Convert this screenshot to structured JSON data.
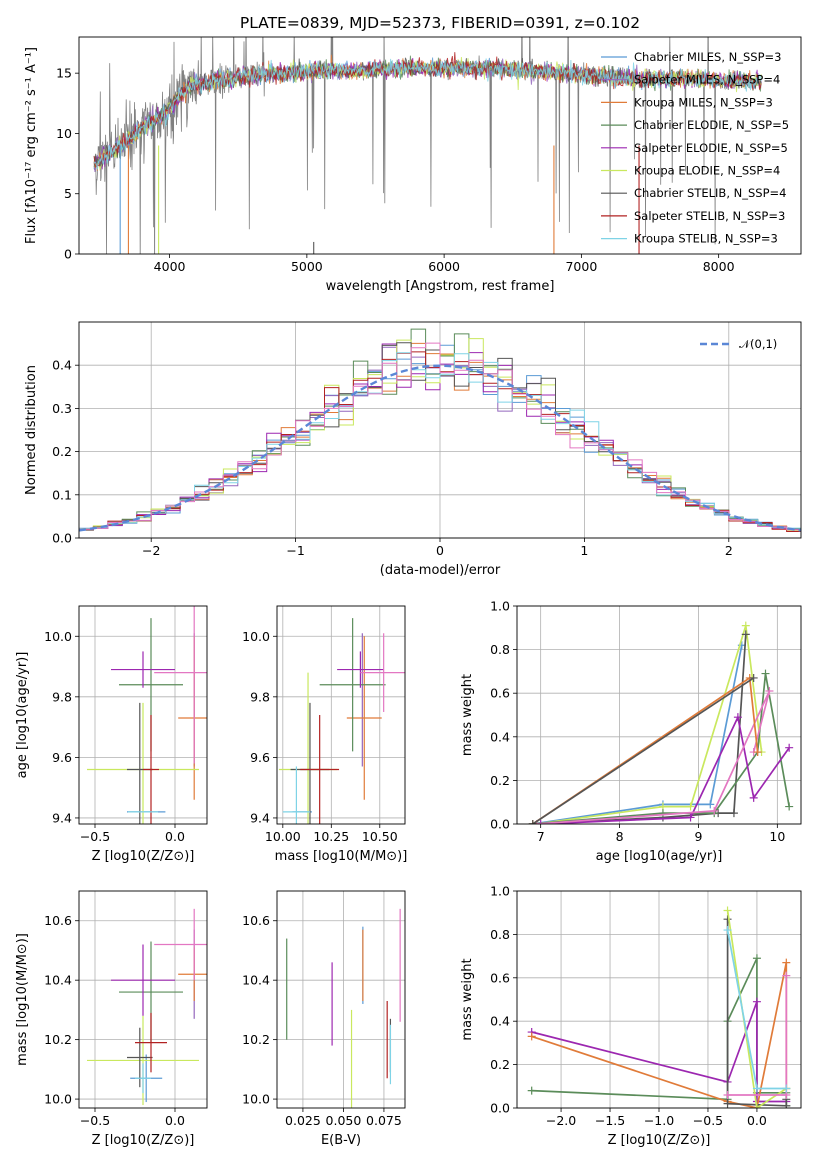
{
  "title": "PLATE=0839, MJD=52373, FIBERID=0391, z=0.102",
  "model_colors": [
    "#5b9bd5",
    "#9467bd",
    "#e07b39",
    "#5b8c5a",
    "#9c27b0",
    "#c9e85e",
    "#555555",
    "#b22222",
    "#7fd3e6"
  ],
  "chart_data": [
    {
      "id": "spectrum",
      "type": "line",
      "xlabel": "wavelength [Angstrom, rest frame]",
      "ylabel": "Flux [fλ10⁻¹⁷ erg cm⁻² s⁻¹ A⁻¹]",
      "xlim": [
        3340,
        8600
      ],
      "ylim": [
        0,
        18
      ],
      "xticks": [
        4000,
        5000,
        6000,
        7000,
        8000
      ],
      "yticks": [
        0,
        5,
        10,
        15
      ],
      "legend_position": "upper right",
      "series": [
        {
          "name": "Chabrier MILES, N_SSP=3",
          "color": "#5b9bd5"
        },
        {
          "name": "Salpeter MILES, N_SSP=4",
          "color": "#9467bd"
        },
        {
          "name": "Kroupa MILES, N_SSP=3",
          "color": "#e07b39"
        },
        {
          "name": "Chabrier ELODIE, N_SSP=5",
          "color": "#5b8c5a"
        },
        {
          "name": "Salpeter ELODIE, N_SSP=5",
          "color": "#9c27b0"
        },
        {
          "name": "Kroupa ELODIE, N_SSP=4",
          "color": "#c9e85e"
        },
        {
          "name": "Chabrier STELIB, N_SSP=4",
          "color": "#555555"
        },
        {
          "name": "Salpeter STELIB, N_SSP=3",
          "color": "#b22222"
        },
        {
          "name": "Kroupa STELIB, N_SSP=3",
          "color": "#7fd3e6"
        }
      ],
      "data_curve": {
        "x": [
          3450,
          3550,
          3650,
          3750,
          3850,
          3950,
          4050,
          4150,
          4300,
          4500,
          4700,
          4900,
          5100,
          5300,
          5500,
          5700,
          5900,
          6100,
          6300,
          6500,
          6700,
          6900,
          7100,
          7300,
          7500,
          7700,
          7900,
          8100,
          8300
        ],
        "y": [
          7.5,
          8.3,
          9.0,
          10.0,
          10.8,
          11.5,
          12.8,
          14.0,
          14.3,
          14.6,
          14.9,
          15.1,
          15.2,
          15.2,
          15.3,
          15.4,
          15.4,
          15.4,
          15.4,
          15.3,
          15.2,
          15.0,
          14.8,
          14.6,
          14.5,
          14.6,
          14.5,
          14.3,
          14.3
        ]
      }
    },
    {
      "id": "residuals",
      "type": "step",
      "xlabel": "(data-model)/error",
      "ylabel": "Normed distribution",
      "xlim": [
        -2.5,
        2.5
      ],
      "ylim": [
        0,
        0.5
      ],
      "xticks": [
        -2,
        -1,
        0,
        1,
        2
      ],
      "yticks": [
        0.0,
        0.1,
        0.2,
        0.3,
        0.4
      ],
      "legend": [
        {
          "name": "𝒩(0,1)",
          "style": "dashed",
          "color": "#5b87d6"
        }
      ],
      "gaussian": {
        "mean": 0,
        "sigma": 1
      }
    },
    {
      "id": "age-vs-Z",
      "type": "errorbar",
      "xlabel": "Z [log10(Z/Z⊙)]",
      "ylabel": "age [log10(age/yr)]",
      "xlim": [
        -0.6,
        0.2
      ],
      "ylim": [
        9.38,
        10.1
      ],
      "xticks": [
        -0.5,
        0.0
      ],
      "yticks": [
        9.4,
        9.6,
        9.8,
        10.0
      ],
      "points": [
        {
          "x": -0.18,
          "y": 9.42,
          "xerr": 0.12,
          "yerr": 0.0,
          "color": "#5b9bd5"
        },
        {
          "x": 0.12,
          "y": 9.79,
          "xerr": 0.0,
          "yerr": 0.22,
          "color": "#9467bd"
        },
        {
          "x": 0.12,
          "y": 9.73,
          "xerr": 0.1,
          "yerr": 0.27,
          "color": "#e07b39"
        },
        {
          "x": -0.15,
          "y": 9.84,
          "xerr": 0.2,
          "yerr": 0.22,
          "color": "#5b8c5a"
        },
        {
          "x": -0.2,
          "y": 9.89,
          "xerr": 0.2,
          "yerr": 0.06,
          "color": "#9c27b0"
        },
        {
          "x": -0.2,
          "y": 9.56,
          "xerr": 0.35,
          "yerr": 0.22,
          "color": "#c9e85e"
        },
        {
          "x": -0.22,
          "y": 9.56,
          "xerr": 0.08,
          "yerr": 0.22,
          "color": "#555555"
        },
        {
          "x": -0.15,
          "y": 9.56,
          "xerr": 0.05,
          "yerr": 0.18,
          "color": "#b22222"
        },
        {
          "x": -0.2,
          "y": 9.42,
          "xerr": 0.0,
          "yerr": 0.0,
          "color": "#7fd3e6"
        },
        {
          "x": 0.12,
          "y": 9.88,
          "xerr": 0.25,
          "yerr": 0.3,
          "color": "#e377c2"
        }
      ]
    },
    {
      "id": "age-vs-mass",
      "type": "errorbar",
      "xlabel": "mass [log10(M/M⊙)]",
      "ylabel": "",
      "xlim": [
        9.97,
        10.63
      ],
      "ylim": [
        9.38,
        10.1
      ],
      "xticks": [
        10.0,
        10.25,
        10.5
      ],
      "yticks": [
        9.4,
        9.6,
        9.8,
        10.0
      ],
      "points": [
        {
          "x": 10.1,
          "y": 9.42,
          "xerr": 0.05,
          "yerr": 0.0,
          "color": "#5b9bd5"
        },
        {
          "x": 10.41,
          "y": 9.79,
          "xerr": 0.0,
          "yerr": 0.22,
          "color": "#9467bd"
        },
        {
          "x": 10.42,
          "y": 9.73,
          "xerr": 0.09,
          "yerr": 0.27,
          "color": "#e07b39"
        },
        {
          "x": 10.36,
          "y": 9.84,
          "xerr": 0.17,
          "yerr": 0.22,
          "color": "#5b8c5a"
        },
        {
          "x": 10.4,
          "y": 9.89,
          "xerr": 0.12,
          "yerr": 0.06,
          "color": "#9c27b0"
        },
        {
          "x": 10.13,
          "y": 9.56,
          "xerr": 0.15,
          "yerr": 0.32,
          "color": "#c9e85e"
        },
        {
          "x": 10.14,
          "y": 9.56,
          "xerr": 0.1,
          "yerr": 0.22,
          "color": "#555555"
        },
        {
          "x": 10.19,
          "y": 9.56,
          "xerr": 0.1,
          "yerr": 0.18,
          "color": "#b22222"
        },
        {
          "x": 10.07,
          "y": 9.42,
          "xerr": 0.07,
          "yerr": 0.15,
          "color": "#7fd3e6"
        },
        {
          "x": 10.52,
          "y": 9.88,
          "xerr": 0.12,
          "yerr": 0.13,
          "color": "#e377c2"
        }
      ]
    },
    {
      "id": "mass-weight-vs-age",
      "type": "line",
      "xlabel": "age [log10(age/yr)]",
      "ylabel": "mass weight",
      "xlim": [
        6.7,
        10.3
      ],
      "ylim": [
        0.0,
        1.0
      ],
      "xticks": [
        7,
        8,
        9,
        10
      ],
      "yticks": [
        0.0,
        0.2,
        0.4,
        0.6,
        0.8,
        1.0
      ],
      "series": [
        {
          "color": "#5b9bd5",
          "x": [
            6.9,
            8.55,
            9.15,
            9.55
          ],
          "y": [
            0.0,
            0.09,
            0.09,
            0.82
          ]
        },
        {
          "color": "#c9e85e",
          "x": [
            6.95,
            8.55,
            8.9,
            9.6,
            9.8
          ],
          "y": [
            0.0,
            0.08,
            0.08,
            0.91,
            0.33
          ]
        },
        {
          "color": "#555555",
          "x": [
            6.9,
            8.55,
            9.25,
            9.45,
            9.6
          ],
          "y": [
            0.0,
            0.03,
            0.05,
            0.05,
            0.87
          ]
        },
        {
          "color": "#5b8c5a",
          "x": [
            6.9,
            8.55,
            9.2,
            9.75,
            9.85,
            10.15
          ],
          "y": [
            0.0,
            0.05,
            0.05,
            0.33,
            0.69,
            0.08
          ]
        },
        {
          "color": "#9c27b0",
          "x": [
            7.0,
            8.9,
            9.5,
            9.7,
            10.15
          ],
          "y": [
            0.0,
            0.03,
            0.49,
            0.12,
            0.35
          ]
        },
        {
          "color": "#e377c2",
          "x": [
            6.95,
            9.2,
            9.9,
            9.7
          ],
          "y": [
            0.0,
            0.06,
            0.61,
            0.33
          ]
        },
        {
          "color": "#e07b39",
          "x": [
            6.9,
            9.65,
            9.75
          ],
          "y": [
            0.0,
            0.67,
            0.33
          ]
        },
        {
          "color": "#555555",
          "x": [
            6.9,
            9.7
          ],
          "y": [
            0.0,
            0.67
          ]
        }
      ]
    },
    {
      "id": "mass-vs-Z",
      "type": "errorbar",
      "xlabel": "Z [log10(Z/Z⊙)]",
      "ylabel": "mass [log10(M/M⊙)]",
      "xlim": [
        -0.6,
        0.2
      ],
      "ylim": [
        9.97,
        10.7
      ],
      "xticks": [
        -0.5,
        0.0
      ],
      "yticks": [
        10.0,
        10.2,
        10.4,
        10.6
      ],
      "points": [
        {
          "x": -0.18,
          "y": 10.07,
          "xerr": 0.1,
          "yerr": 0.08,
          "color": "#5b9bd5"
        },
        {
          "x": 0.12,
          "y": 10.42,
          "xerr": 0.0,
          "yerr": 0.15,
          "color": "#9467bd"
        },
        {
          "x": 0.12,
          "y": 10.42,
          "xerr": 0.1,
          "yerr": 0.09,
          "color": "#e07b39"
        },
        {
          "x": -0.15,
          "y": 10.36,
          "xerr": 0.2,
          "yerr": 0.17,
          "color": "#5b8c5a"
        },
        {
          "x": -0.2,
          "y": 10.4,
          "xerr": 0.2,
          "yerr": 0.12,
          "color": "#9c27b0"
        },
        {
          "x": -0.2,
          "y": 10.13,
          "xerr": 0.35,
          "yerr": 0.15,
          "color": "#c9e85e"
        },
        {
          "x": -0.22,
          "y": 10.14,
          "xerr": 0.08,
          "yerr": 0.1,
          "color": "#555555"
        },
        {
          "x": -0.15,
          "y": 10.19,
          "xerr": 0.1,
          "yerr": 0.1,
          "color": "#b22222"
        },
        {
          "x": -0.2,
          "y": 10.07,
          "xerr": 0.05,
          "yerr": 0.05,
          "color": "#7fd3e6"
        },
        {
          "x": 0.12,
          "y": 10.52,
          "xerr": 0.25,
          "yerr": 0.12,
          "color": "#e377c2"
        }
      ]
    },
    {
      "id": "mass-vs-EBV",
      "type": "errorbar",
      "xlabel": "E(B-V)",
      "ylabel": "",
      "xlim": [
        0.009,
        0.088
      ],
      "ylim": [
        9.97,
        10.7
      ],
      "xticks": [
        0.025,
        0.05,
        0.075
      ],
      "yticks": [
        10.0,
        10.2,
        10.4,
        10.6
      ],
      "points": [
        {
          "x": 0.062,
          "y": 10.45,
          "xerr": 0.0,
          "yerr": 0.13,
          "color": "#5b9bd5"
        },
        {
          "x": 0.062,
          "y": 10.45,
          "xerr": 0.0,
          "yerr": 0.12,
          "color": "#e07b39"
        },
        {
          "x": 0.015,
          "y": 10.37,
          "xerr": 0.0,
          "yerr": 0.17,
          "color": "#5b8c5a"
        },
        {
          "x": 0.043,
          "y": 10.32,
          "xerr": 0.0,
          "yerr": 0.14,
          "color": "#9c27b0"
        },
        {
          "x": 0.055,
          "y": 10.13,
          "xerr": 0.0,
          "yerr": 0.17,
          "color": "#c9e85e"
        },
        {
          "x": 0.079,
          "y": 10.18,
          "xerr": 0.0,
          "yerr": 0.09,
          "color": "#555555"
        },
        {
          "x": 0.077,
          "y": 10.2,
          "xerr": 0.0,
          "yerr": 0.13,
          "color": "#b22222"
        },
        {
          "x": 0.079,
          "y": 10.15,
          "xerr": 0.0,
          "yerr": 0.1,
          "color": "#7fd3e6"
        },
        {
          "x": 0.085,
          "y": 10.45,
          "xerr": 0.0,
          "yerr": 0.19,
          "color": "#e377c2"
        }
      ]
    },
    {
      "id": "mass-weight-vs-Z",
      "type": "line",
      "xlabel": "Z [log10(Z/Z⊙)]",
      "ylabel": "mass weight",
      "xlim": [
        -2.45,
        0.45
      ],
      "ylim": [
        0.0,
        1.0
      ],
      "xticks": [
        -2.0,
        -1.5,
        -1.0,
        -0.5,
        0.0
      ],
      "xticklabels": [
        "−2.0",
        "−1.5",
        "−1.0",
        "−0.5",
        "0.0"
      ],
      "yticks": [
        0.0,
        0.2,
        0.4,
        0.6,
        0.8,
        1.0
      ],
      "series": [
        {
          "color": "#5b8c5a",
          "x": [
            -2.3,
            -0.3,
            -0.3,
            0.0,
            0.0,
            0.3,
            0.3
          ],
          "y": [
            0.08,
            0.04,
            0.4,
            0.69,
            0.07,
            0.07,
            0.01
          ]
        },
        {
          "color": "#9c27b0",
          "x": [
            -2.3,
            -0.3,
            0.0,
            0.0,
            0.3
          ],
          "y": [
            0.35,
            0.12,
            0.49,
            0.03,
            0.03
          ]
        },
        {
          "color": "#e07b39",
          "x": [
            -2.3,
            -0.3,
            0.0,
            0.3,
            0.3
          ],
          "y": [
            0.33,
            0.03,
            0.0,
            0.67,
            0.09
          ]
        },
        {
          "color": "#555555",
          "x": [
            -0.3,
            -0.3,
            0.3,
            0.3
          ],
          "y": [
            0.87,
            0.02,
            0.01,
            0.04
          ]
        },
        {
          "color": "#c9e85e",
          "x": [
            -0.3,
            0.0,
            0.3
          ],
          "y": [
            0.91,
            0.0,
            0.09
          ]
        },
        {
          "color": "#e377c2",
          "x": [
            -0.3,
            0.3,
            0.3
          ],
          "y": [
            0.06,
            0.06,
            0.61
          ]
        },
        {
          "color": "#7fd3e6",
          "x": [
            -0.3,
            0.0,
            0.3
          ],
          "y": [
            0.82,
            0.09,
            0.09
          ]
        }
      ]
    }
  ]
}
